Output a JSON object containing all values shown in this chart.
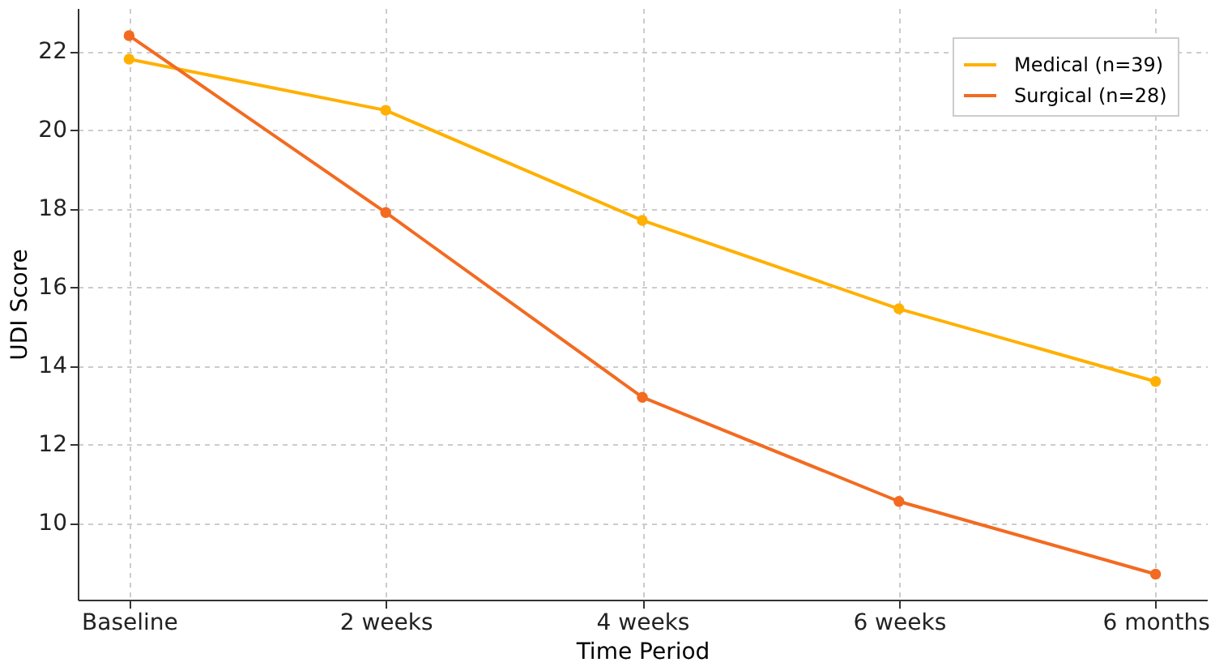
{
  "chart_data": {
    "type": "line",
    "xlabel": "Time Period",
    "ylabel": "UDI Score",
    "categories": [
      "Baseline",
      "2 weeks",
      "4 weeks",
      "6 weeks",
      "6 months"
    ],
    "series": [
      {
        "name": "Medical (n=39)",
        "color": "#ffb000",
        "values": [
          21.8,
          20.5,
          17.7,
          15.45,
          13.6
        ]
      },
      {
        "name": "Surgical (n=28)",
        "color": "#f26b21",
        "values": [
          22.4,
          17.9,
          13.2,
          10.55,
          8.7
        ]
      }
    ],
    "ylim": [
      8.05,
      23.1
    ],
    "yticks": [
      10,
      12,
      14,
      16,
      18,
      20,
      22
    ],
    "grid": true,
    "legend": "top right",
    "marker": "circle",
    "line_style": "solid"
  }
}
